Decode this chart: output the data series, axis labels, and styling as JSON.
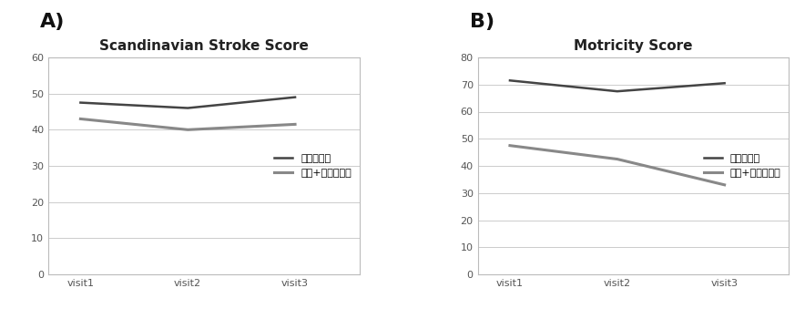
{
  "panel_A": {
    "title": "Scandinavian Stroke Score",
    "xlabel_ticks": [
      "visit1",
      "visit2",
      "visit3"
    ],
    "ylim": [
      0,
      60
    ],
    "yticks": [
      0,
      10,
      20,
      30,
      40,
      50,
      60
    ],
    "line1": {
      "values": [
        47.5,
        46.0,
        49.0
      ],
      "label": "양방치료군",
      "color": "#444444",
      "linewidth": 1.8
    },
    "line2": {
      "values": [
        43.0,
        40.0,
        41.5
      ],
      "label": "양방+한방치료군",
      "color": "#888888",
      "linewidth": 2.2
    }
  },
  "panel_B": {
    "title": "Motricity Score",
    "xlabel_ticks": [
      "visit1",
      "visit2",
      "visit3"
    ],
    "ylim": [
      0,
      80
    ],
    "yticks": [
      0,
      10,
      20,
      30,
      40,
      50,
      60,
      70,
      80
    ],
    "line1": {
      "values": [
        71.5,
        67.5,
        70.5
      ],
      "label": "양방치료군",
      "color": "#444444",
      "linewidth": 1.8
    },
    "line2": {
      "values": [
        47.5,
        42.5,
        33.0
      ],
      "label": "양방+한방치료군",
      "color": "#888888",
      "linewidth": 2.2
    }
  },
  "panel_label_fontsize": 16,
  "title_fontsize": 11,
  "tick_fontsize": 8,
  "legend_fontsize": 8,
  "background_color": "#ffffff",
  "plot_bg_color": "#ffffff",
  "grid_color": "#cccccc",
  "spine_color": "#bbbbbb",
  "panel_A_label": "A)",
  "panel_B_label": "B)"
}
